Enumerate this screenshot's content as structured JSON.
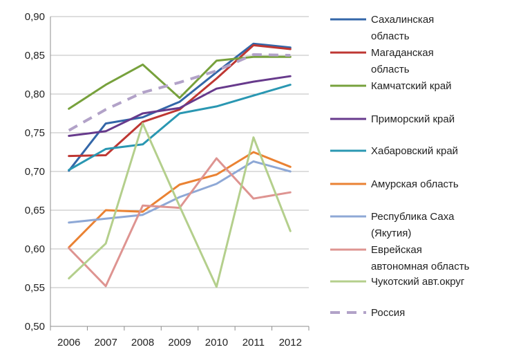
{
  "chart_data": {
    "type": "line",
    "title": "",
    "xlabel": "",
    "ylabel": "",
    "x": [
      "2006",
      "2007",
      "2008",
      "2009",
      "2010",
      "2011",
      "2012"
    ],
    "ylim": [
      0.5,
      0.9
    ],
    "yticks": [
      "0,50",
      "0,55",
      "0,60",
      "0,65",
      "0,70",
      "0,75",
      "0,80",
      "0,85",
      "0,90"
    ],
    "grid": "horizontal",
    "legend_position": "right",
    "series": [
      {
        "name": "Сахалинская область",
        "legend_lines": [
          "Сахалинская",
          "область"
        ],
        "color": "#3366a8",
        "dash": false,
        "values": [
          0.701,
          0.762,
          0.77,
          0.79,
          0.828,
          0.865,
          0.86
        ]
      },
      {
        "name": "Магаданская область",
        "legend_lines": [
          "Магаданская",
          "область"
        ],
        "color": "#be3733",
        "dash": false,
        "values": [
          0.72,
          0.721,
          0.764,
          0.78,
          0.82,
          0.863,
          0.858
        ]
      },
      {
        "name": "Камчатский край",
        "legend_lines": [
          "Камчатский край"
        ],
        "color": "#77a13c",
        "dash": false,
        "values": [
          0.781,
          0.812,
          0.838,
          0.795,
          0.843,
          0.848,
          0.848
        ]
      },
      {
        "name": "Приморский край",
        "legend_lines": [
          "Приморский край"
        ],
        "color": "#673a8c",
        "dash": false,
        "values": [
          0.746,
          0.752,
          0.775,
          0.782,
          0.807,
          0.816,
          0.823
        ]
      },
      {
        "name": "Хабаровский край",
        "legend_lines": [
          "Хабаровский край"
        ],
        "color": "#2a97b2",
        "dash": false,
        "values": [
          0.702,
          0.729,
          0.735,
          0.775,
          0.784,
          0.798,
          0.812
        ]
      },
      {
        "name": "Амурская область",
        "legend_lines": [
          "Амурская область"
        ],
        "color": "#ea8233",
        "dash": false,
        "values": [
          0.602,
          0.65,
          0.648,
          0.683,
          0.696,
          0.725,
          0.706
        ]
      },
      {
        "name": "Республика Саха (Якутия)",
        "legend_lines": [
          "Республика Саха",
          "(Якутия)"
        ],
        "color": "#8ea8d6",
        "dash": false,
        "values": [
          0.634,
          0.639,
          0.644,
          0.667,
          0.684,
          0.713,
          0.7
        ]
      },
      {
        "name": "Еврейская автономная область",
        "legend_lines": [
          "Еврейская",
          "автономная область"
        ],
        "color": "#de9491",
        "dash": false,
        "values": [
          0.601,
          0.552,
          0.656,
          0.653,
          0.717,
          0.665,
          0.673
        ]
      },
      {
        "name": "Чукотский авт.округ",
        "legend_lines": [
          "Чукотский авт.округ"
        ],
        "color": "#b4cf8c",
        "dash": false,
        "values": [
          0.562,
          0.607,
          0.762,
          0.655,
          0.551,
          0.744,
          0.623
        ]
      },
      {
        "name": "Россия",
        "legend_lines": [
          "Россия"
        ],
        "color": "#b2a2c8",
        "dash": true,
        "values": [
          0.753,
          0.78,
          0.802,
          0.815,
          0.83,
          0.851,
          0.85
        ]
      }
    ]
  }
}
